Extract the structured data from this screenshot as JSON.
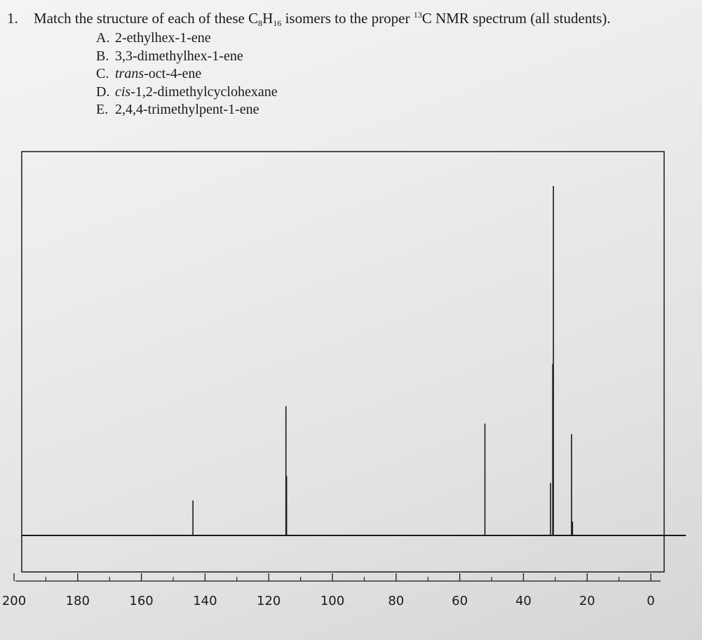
{
  "question": {
    "number": "1.",
    "text_before": "Match the structure of each of these C",
    "sub_c": "8",
    "text_h": "H",
    "sub_h": "16",
    "text_mid": " isomers to the proper ",
    "sup_isotope": "13",
    "text_after": "C NMR spectrum (all students).",
    "options": [
      {
        "letter": "A.",
        "prefix": "",
        "name": "2-ethylhex-1-ene"
      },
      {
        "letter": "B.",
        "prefix": "",
        "name": "3,3-dimethylhex-1-ene"
      },
      {
        "letter": "C.",
        "prefix": "trans",
        "name": "-oct-4-ene"
      },
      {
        "letter": "D.",
        "prefix": "cis",
        "name": "-1,2-dimethylcyclohexane"
      },
      {
        "letter": "E.",
        "prefix": "",
        "name": "2,4,4-trimethylpent-1-ene"
      }
    ]
  },
  "chart_data": {
    "type": "line",
    "title": "",
    "xlabel": "",
    "ylabel": "",
    "x_reversed": true,
    "xlim": [
      200,
      0
    ],
    "x_ticks": [
      200,
      180,
      160,
      140,
      120,
      100,
      80,
      60,
      40,
      20,
      0
    ],
    "x_minor_ticks": [
      190,
      170,
      150,
      130,
      110,
      90,
      70,
      50,
      30,
      10
    ],
    "y_relative_max": 1.0,
    "peaks": [
      {
        "ppm": 143.8,
        "height": 0.1
      },
      {
        "ppm": 114.6,
        "height": 0.37
      },
      {
        "ppm": 114.4,
        "height": 0.17
      },
      {
        "ppm": 52.1,
        "height": 0.32
      },
      {
        "ppm": 31.5,
        "height": 0.15
      },
      {
        "ppm": 30.8,
        "height": 0.49
      },
      {
        "ppm": 30.6,
        "height": 1.0
      },
      {
        "ppm": 24.9,
        "height": 0.29
      },
      {
        "ppm": 24.6,
        "height": 0.04
      }
    ]
  }
}
